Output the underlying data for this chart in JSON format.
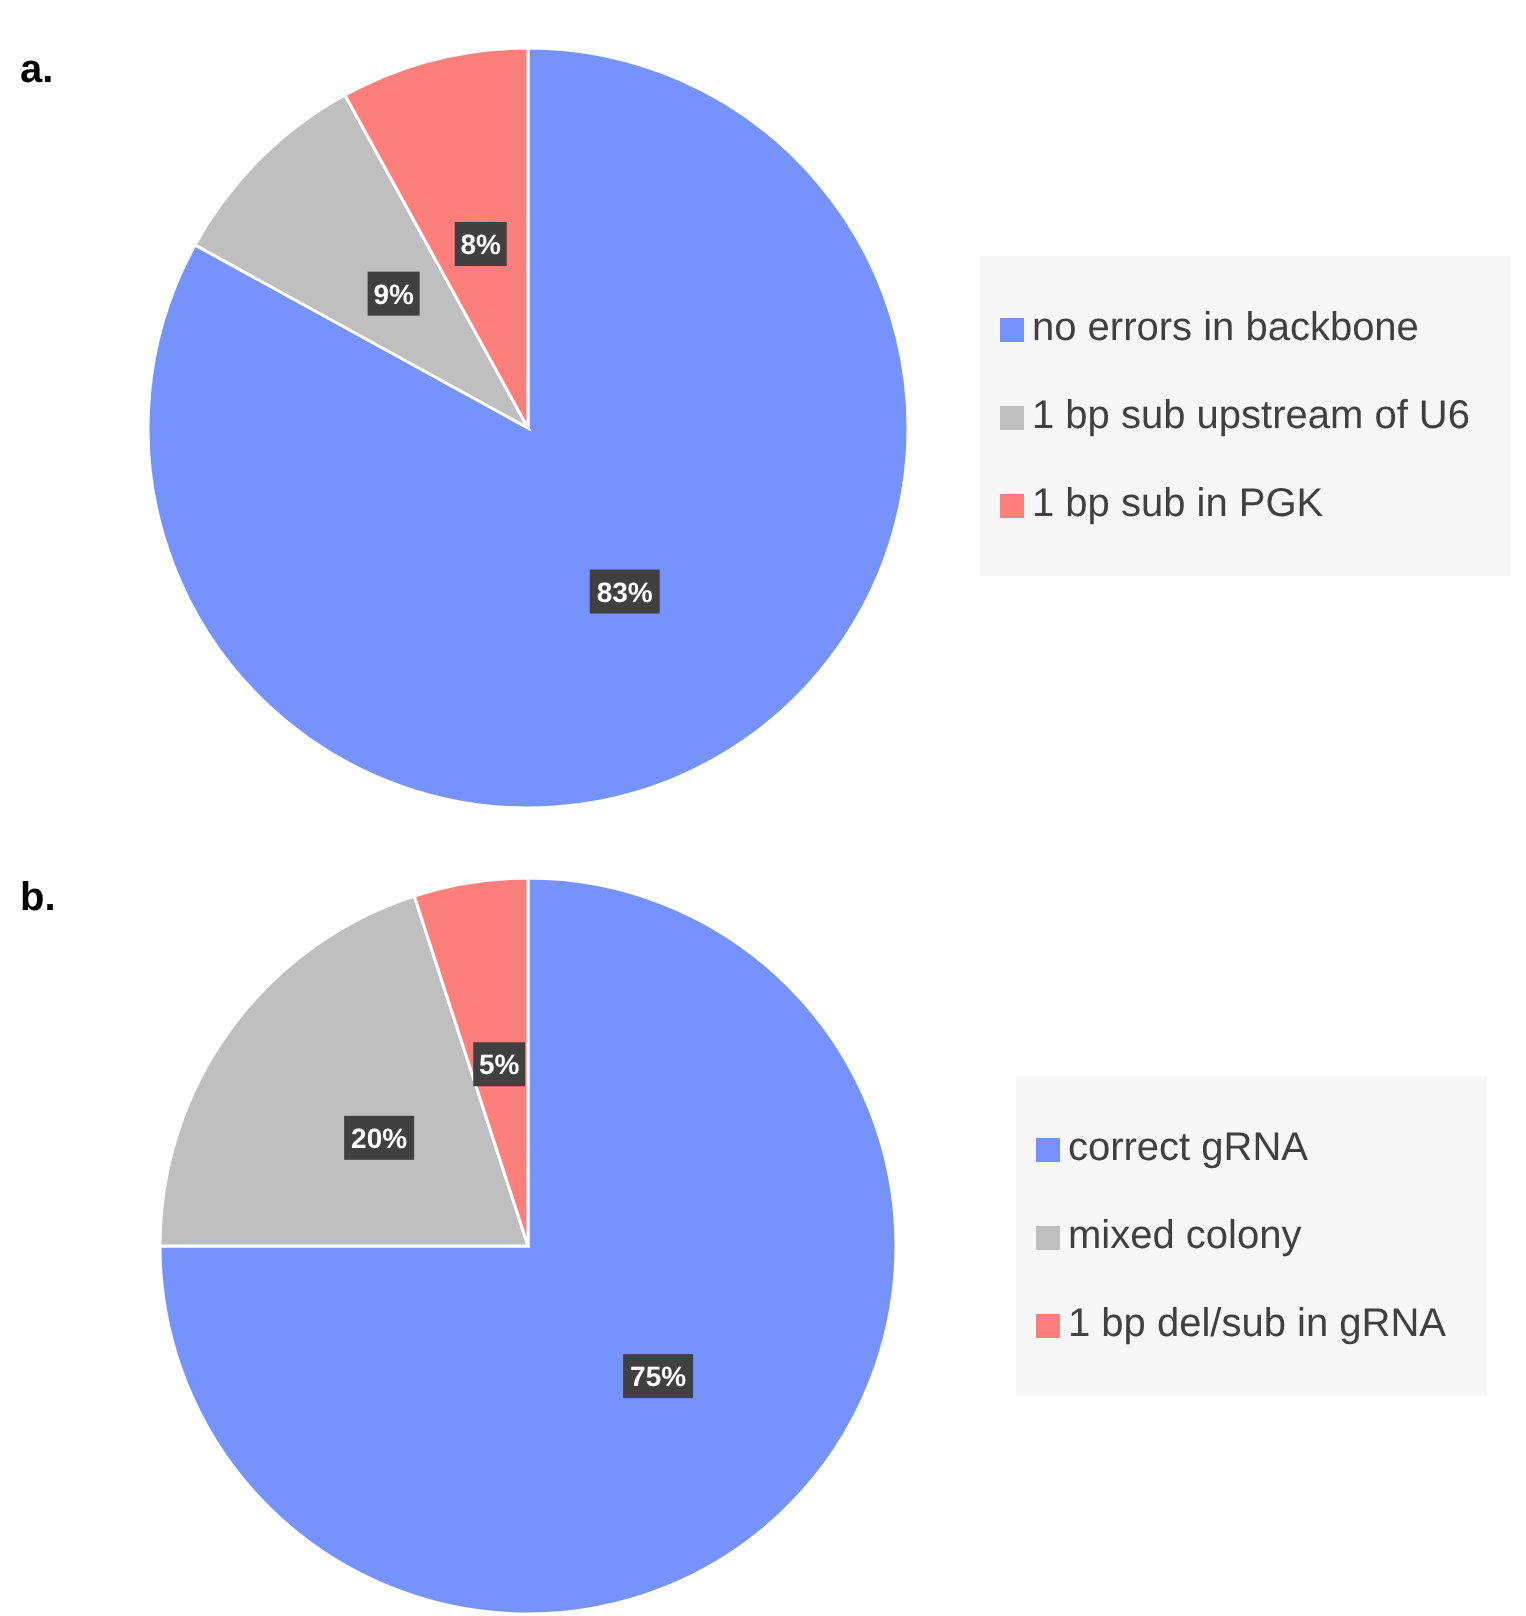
{
  "chart_data": [
    {
      "type": "pie",
      "title": "a.",
      "categories": [
        "no errors in backbone",
        "1 bp sub upstream of U6",
        "1 bp sub in PGK"
      ],
      "values": [
        83,
        9,
        8
      ],
      "colors": [
        "#7592fd",
        "#bfbfbf",
        "#fd7f7b"
      ],
      "value_labels": [
        "83%",
        "9%",
        "8%"
      ],
      "legend": "right"
    },
    {
      "type": "pie",
      "title": "b.",
      "categories": [
        "correct gRNA",
        "mixed colony",
        "1 bp del/sub in gRNA"
      ],
      "values": [
        75,
        20,
        5
      ],
      "colors": [
        "#7592fd",
        "#bfbfbf",
        "#fd7f7b"
      ],
      "value_labels": [
        "75%",
        "20%",
        "5%"
      ],
      "legend": "right"
    }
  ]
}
